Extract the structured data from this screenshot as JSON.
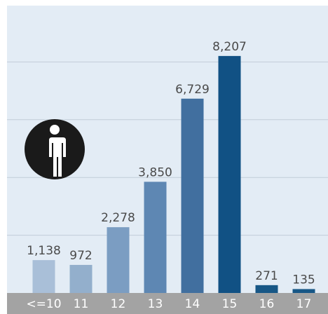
{
  "chart_data": {
    "type": "bar",
    "categories": [
      "<=10",
      "11",
      "12",
      "13",
      "14",
      "15",
      "16",
      "17"
    ],
    "values": [
      1138,
      972,
      2278,
      3850,
      6729,
      8207,
      271,
      135
    ],
    "value_labels": [
      "1,138",
      "972",
      "2,278",
      "3,850",
      "6,729",
      "8,207",
      "271",
      "135"
    ],
    "colors": [
      "#a9bfd8",
      "#93afcc",
      "#7b9dc2",
      "#5e87b3",
      "#416f9f",
      "#115184",
      "#175786",
      "#175786"
    ],
    "ylim": [
      0,
      10000
    ],
    "yticks": [
      2000,
      4000,
      6000,
      8000
    ],
    "grid": true
  }
}
